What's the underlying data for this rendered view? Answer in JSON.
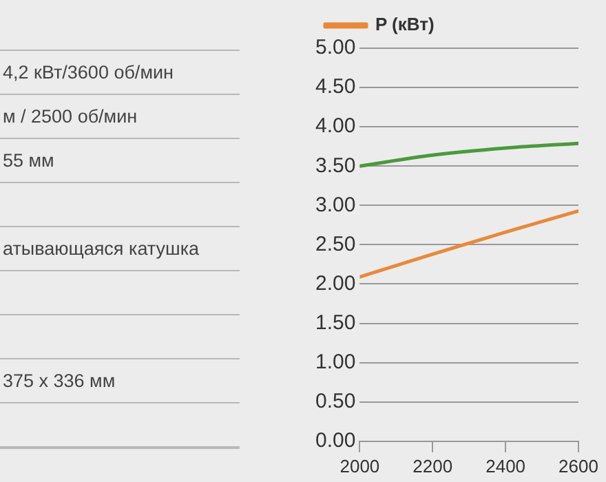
{
  "chart_data": {
    "type": "line",
    "x": [
      2000,
      2200,
      2400,
      2600
    ],
    "series": [
      {
        "color": "#4a9a3c",
        "values": [
          3.5,
          3.64,
          3.73,
          3.79
        ]
      },
      {
        "name": "P (кВт)",
        "color": "#e8893a",
        "values": [
          2.09,
          2.38,
          2.66,
          2.93
        ]
      }
    ],
    "xlim": [
      2000,
      2600
    ],
    "xticks": [
      2000,
      2200,
      2400,
      2600
    ],
    "ylim": [
      0,
      5
    ],
    "yticks": [
      {
        "value": 0,
        "label": "0.00"
      },
      {
        "value": 0.5,
        "label": "0.50"
      },
      {
        "value": 1,
        "label": "1.00"
      },
      {
        "value": 1.5,
        "label": "1.50"
      },
      {
        "value": 2,
        "label": "2.00"
      },
      {
        "value": 2.5,
        "label": "2.50"
      },
      {
        "value": 3,
        "label": "3.00"
      },
      {
        "value": 3.5,
        "label": "3.50"
      },
      {
        "value": 4,
        "label": "4.00"
      },
      {
        "value": 4.5,
        "label": "4.50"
      },
      {
        "value": 5,
        "label": "5.00"
      }
    ],
    "grid": "y",
    "legend": "top",
    "marker": "none",
    "line_style": "solid",
    "annotations": [
      "4,2 кВт/3600 об/мин",
      "м / 2500 об/мин",
      "55 мм",
      "атывающаяся катушка",
      "375 x 336 мм"
    ]
  }
}
